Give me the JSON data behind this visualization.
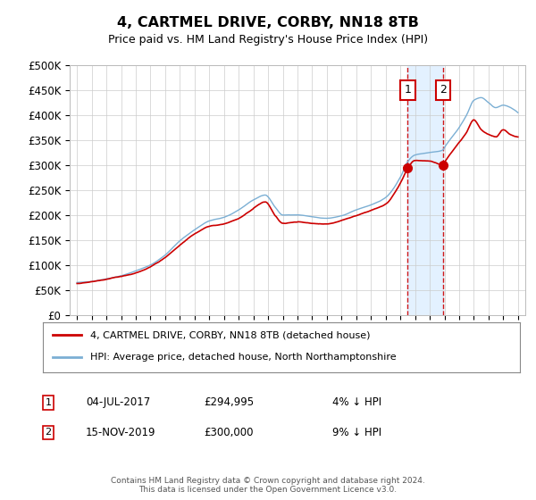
{
  "title": "4, CARTMEL DRIVE, CORBY, NN18 8TB",
  "subtitle": "Price paid vs. HM Land Registry's House Price Index (HPI)",
  "ylabel_ticks": [
    "£0",
    "£50K",
    "£100K",
    "£150K",
    "£200K",
    "£250K",
    "£300K",
    "£350K",
    "£400K",
    "£450K",
    "£500K"
  ],
  "ytick_values": [
    0,
    50000,
    100000,
    150000,
    200000,
    250000,
    300000,
    350000,
    400000,
    450000,
    500000
  ],
  "hpi_color": "#7bafd4",
  "price_color": "#cc0000",
  "background_color": "#ffffff",
  "grid_color": "#cccccc",
  "annotation_color": "#cc0000",
  "highlight_bg": "#ddeeff",
  "legend_label_red": "4, CARTMEL DRIVE, CORBY, NN18 8TB (detached house)",
  "legend_label_blue": "HPI: Average price, detached house, North Northamptonshire",
  "annotation1_date": "04-JUL-2017",
  "annotation1_price": "£294,995",
  "annotation1_pct": "4% ↓ HPI",
  "annotation1_value": 294995,
  "annotation1_year": 2017.5,
  "annotation2_date": "15-NOV-2019",
  "annotation2_price": "£300,000",
  "annotation2_pct": "9% ↓ HPI",
  "annotation2_value": 300000,
  "annotation2_year": 2019.9,
  "footer": "Contains HM Land Registry data © Crown copyright and database right 2024.\nThis data is licensed under the Open Government Licence v3.0.",
  "xmin": 1994.5,
  "xmax": 2025.5,
  "ymin": 0,
  "ymax": 500000
}
